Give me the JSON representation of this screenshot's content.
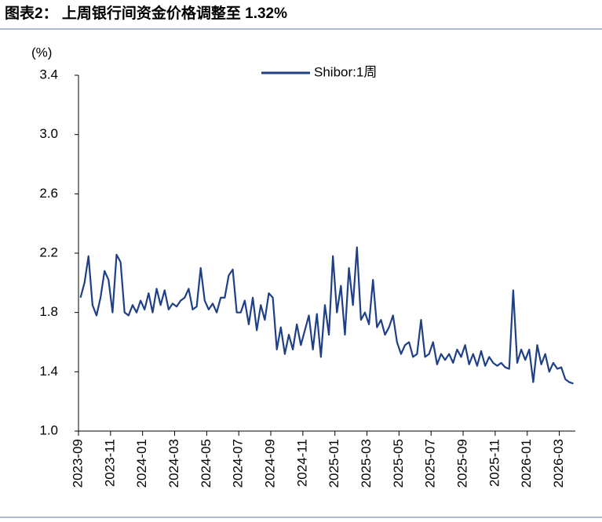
{
  "chart_data": {
    "type": "line",
    "title": "图表2： 上周银行间资金价格调整至 1.32%",
    "y_label": "(%)",
    "x": [
      "2023-09",
      "2023-09",
      "2023-09",
      "2023-09",
      "2023-10",
      "2023-10",
      "2023-10",
      "2023-10",
      "2023-11",
      "2023-11",
      "2023-11",
      "2023-11",
      "2023-12",
      "2023-12",
      "2023-12",
      "2023-12",
      "2024-01",
      "2024-01",
      "2024-01",
      "2024-01",
      "2024-02",
      "2024-02",
      "2024-02",
      "2024-02",
      "2024-03",
      "2024-03",
      "2024-03",
      "2024-03",
      "2024-04",
      "2024-04",
      "2024-04",
      "2024-04",
      "2024-05",
      "2024-05",
      "2024-05",
      "2024-05",
      "2024-06",
      "2024-06",
      "2024-06",
      "2024-06",
      "2024-07",
      "2024-07",
      "2024-07",
      "2024-07",
      "2024-08",
      "2024-08",
      "2024-08",
      "2024-08",
      "2024-09",
      "2024-09",
      "2024-09",
      "2024-09",
      "2024-10",
      "2024-10",
      "2024-10",
      "2024-10",
      "2024-11",
      "2024-11",
      "2024-11",
      "2024-11",
      "2024-12",
      "2024-12",
      "2024-12",
      "2024-12",
      "2025-01",
      "2025-01",
      "2025-01",
      "2025-01",
      "2025-02",
      "2025-02",
      "2025-02",
      "2025-02",
      "2025-03",
      "2025-03",
      "2025-03",
      "2025-03",
      "2025-04",
      "2025-04",
      "2025-04",
      "2025-04",
      "2025-05",
      "2025-05",
      "2025-05",
      "2025-05",
      "2025-06",
      "2025-06",
      "2025-06",
      "2025-06",
      "2025-07",
      "2025-07",
      "2025-07",
      "2025-07",
      "2025-08",
      "2025-08",
      "2025-08",
      "2025-08",
      "2025-09",
      "2025-09",
      "2025-09",
      "2025-09",
      "2025-10",
      "2025-10",
      "2025-10",
      "2025-10",
      "2025-11",
      "2025-11",
      "2025-11",
      "2025-11",
      "2025-12",
      "2025-12",
      "2025-12",
      "2025-12",
      "2026-01",
      "2026-01",
      "2026-01",
      "2026-01",
      "2026-02",
      "2026-02",
      "2026-02",
      "2026-02",
      "2026-03",
      "2026-03",
      "2026-03",
      "2026-03"
    ],
    "series": [
      {
        "name": "Shibor:1周",
        "color": "#1f3f86",
        "values": [
          1.9,
          2.0,
          2.18,
          1.85,
          1.78,
          1.9,
          2.08,
          2.02,
          1.8,
          2.19,
          2.14,
          1.8,
          1.78,
          1.85,
          1.8,
          1.88,
          1.82,
          1.93,
          1.8,
          1.96,
          1.85,
          1.95,
          1.82,
          1.86,
          1.84,
          1.88,
          1.9,
          1.96,
          1.82,
          1.84,
          2.1,
          1.88,
          1.82,
          1.86,
          1.8,
          1.9,
          1.9,
          2.05,
          2.09,
          1.8,
          1.8,
          1.88,
          1.72,
          1.9,
          1.68,
          1.85,
          1.75,
          1.93,
          1.9,
          1.55,
          1.7,
          1.52,
          1.65,
          1.55,
          1.72,
          1.58,
          1.68,
          1.78,
          1.55,
          1.79,
          1.5,
          1.85,
          1.65,
          2.18,
          1.8,
          1.98,
          1.65,
          2.1,
          1.85,
          2.24,
          1.75,
          1.8,
          1.72,
          2.02,
          1.7,
          1.75,
          1.65,
          1.7,
          1.78,
          1.6,
          1.52,
          1.58,
          1.6,
          1.5,
          1.52,
          1.75,
          1.5,
          1.52,
          1.6,
          1.45,
          1.52,
          1.48,
          1.52,
          1.46,
          1.55,
          1.5,
          1.58,
          1.45,
          1.52,
          1.44,
          1.54,
          1.44,
          1.5,
          1.46,
          1.44,
          1.46,
          1.43,
          1.42,
          1.95,
          1.46,
          1.55,
          1.48,
          1.55,
          1.33,
          1.58,
          1.45,
          1.52,
          1.4,
          1.46,
          1.42,
          1.43,
          1.35,
          1.33,
          1.32
        ]
      }
    ],
    "xlim": [
      "2023-09",
      "2026-04"
    ],
    "xticks": [
      "2023-09",
      "2023-11",
      "2024-01",
      "2024-03",
      "2024-05",
      "2024-07",
      "2024-09",
      "2024-11",
      "2025-01",
      "2025-03",
      "2025-05",
      "2025-07",
      "2025-09",
      "2025-11",
      "2026-01",
      "2026-03"
    ],
    "ylim": [
      1.0,
      3.4
    ],
    "yticks": [
      {
        "value": 1.0,
        "label": "1.0"
      },
      1.4,
      1.8,
      2.2,
      2.6,
      {
        "value": 3.0,
        "label": "3.0"
      },
      3.4
    ],
    "legend": "top"
  }
}
